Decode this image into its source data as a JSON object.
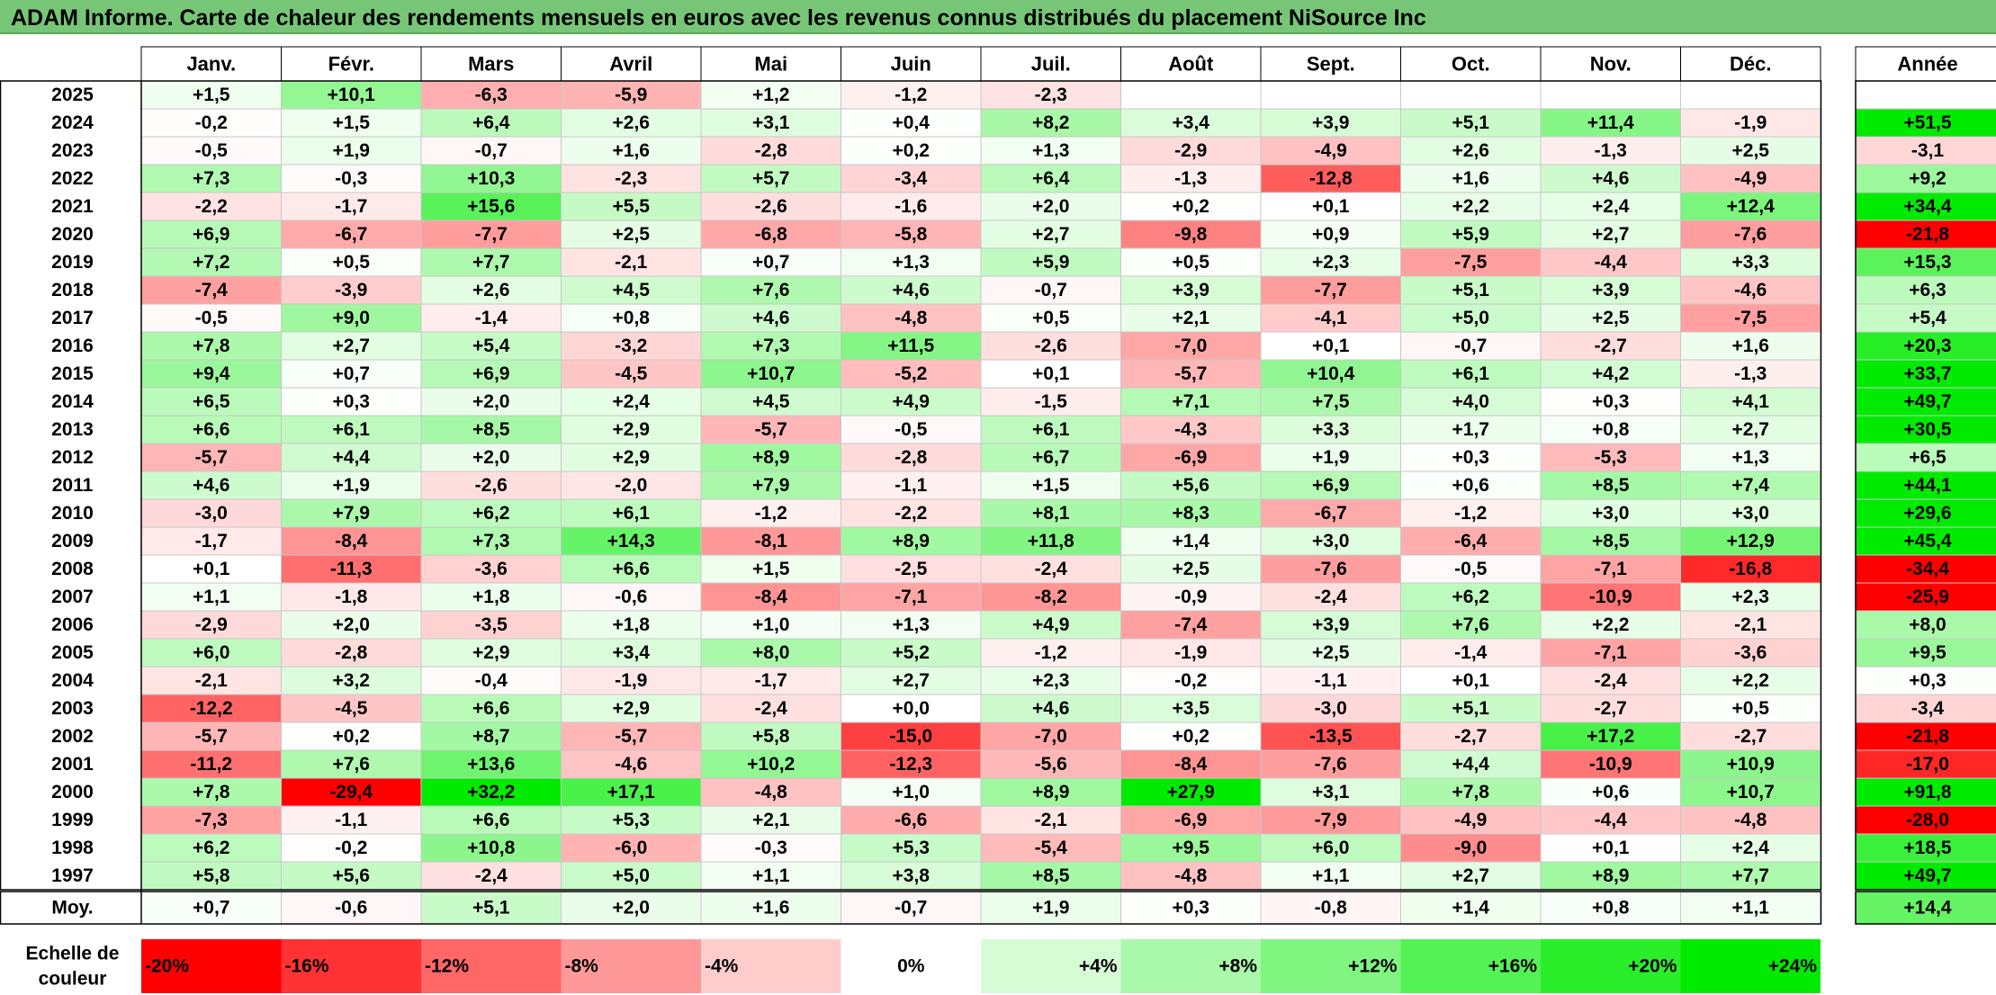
{
  "title": "ADAM Informe. Carte de chaleur des rendements mensuels en euros avec les revenus connus distribués du placement NiSource Inc",
  "colors": {
    "title_bg": "#77c677",
    "negative_max": "#ff0000",
    "positive_max": "#00e000",
    "neutral": "#ffffff"
  },
  "chart_data": {
    "type": "heatmap",
    "columns": [
      "Janv.",
      "Févr.",
      "Mars",
      "Avril",
      "Mai",
      "Juin",
      "Juil.",
      "Août",
      "Sept.",
      "Oct.",
      "Nov.",
      "Déc."
    ],
    "annual_header": "Année",
    "rows": [
      {
        "year": "2025",
        "values": [
          "+1,5",
          "+10,1",
          "-6,3",
          "-5,9",
          "+1,2",
          "-1,2",
          "-2,3",
          "",
          "",
          "",
          "",
          ""
        ],
        "annual": ""
      },
      {
        "year": "2024",
        "values": [
          "-0,2",
          "+1,5",
          "+6,4",
          "+2,6",
          "+3,1",
          "+0,4",
          "+8,2",
          "+3,4",
          "+3,9",
          "+5,1",
          "+11,4",
          "-1,9"
        ],
        "annual": "+51,5"
      },
      {
        "year": "2023",
        "values": [
          "-0,5",
          "+1,9",
          "-0,7",
          "+1,6",
          "-2,8",
          "+0,2",
          "+1,3",
          "-2,9",
          "-4,9",
          "+2,6",
          "-1,3",
          "+2,5"
        ],
        "annual": "-3,1"
      },
      {
        "year": "2022",
        "values": [
          "+7,3",
          "-0,3",
          "+10,3",
          "-2,3",
          "+5,7",
          "-3,4",
          "+6,4",
          "-1,3",
          "-12,8",
          "+1,6",
          "+4,6",
          "-4,9"
        ],
        "annual": "+9,2"
      },
      {
        "year": "2021",
        "values": [
          "-2,2",
          "-1,7",
          "+15,6",
          "+5,5",
          "-2,6",
          "-1,6",
          "+2,0",
          "+0,2",
          "+0,1",
          "+2,2",
          "+2,4",
          "+12,4"
        ],
        "annual": "+34,4"
      },
      {
        "year": "2020",
        "values": [
          "+6,9",
          "-6,7",
          "-7,7",
          "+2,5",
          "-6,8",
          "-5,8",
          "+2,7",
          "-9,8",
          "+0,9",
          "+5,9",
          "+2,7",
          "-7,6"
        ],
        "annual": "-21,8"
      },
      {
        "year": "2019",
        "values": [
          "+7,2",
          "+0,5",
          "+7,7",
          "-2,1",
          "+0,7",
          "+1,3",
          "+5,9",
          "+0,5",
          "+2,3",
          "-7,5",
          "-4,4",
          "+3,3"
        ],
        "annual": "+15,3"
      },
      {
        "year": "2018",
        "values": [
          "-7,4",
          "-3,9",
          "+2,6",
          "+4,5",
          "+7,6",
          "+4,6",
          "-0,7",
          "+3,9",
          "-7,7",
          "+5,1",
          "+3,9",
          "-4,6"
        ],
        "annual": "+6,3"
      },
      {
        "year": "2017",
        "values": [
          "-0,5",
          "+9,0",
          "-1,4",
          "+0,8",
          "+4,6",
          "-4,8",
          "+0,5",
          "+2,1",
          "-4,1",
          "+5,0",
          "+2,5",
          "-7,5"
        ],
        "annual": "+5,4"
      },
      {
        "year": "2016",
        "values": [
          "+7,8",
          "+2,7",
          "+5,4",
          "-3,2",
          "+7,3",
          "+11,5",
          "-2,6",
          "-7,0",
          "+0,1",
          "-0,7",
          "-2,7",
          "+1,6"
        ],
        "annual": "+20,3"
      },
      {
        "year": "2015",
        "values": [
          "+9,4",
          "+0,7",
          "+6,9",
          "-4,5",
          "+10,7",
          "-5,2",
          "+0,1",
          "-5,7",
          "+10,4",
          "+6,1",
          "+4,2",
          "-1,3"
        ],
        "annual": "+33,7"
      },
      {
        "year": "2014",
        "values": [
          "+6,5",
          "+0,3",
          "+2,0",
          "+2,4",
          "+4,5",
          "+4,9",
          "-1,5",
          "+7,1",
          "+7,5",
          "+4,0",
          "+0,3",
          "+4,1"
        ],
        "annual": "+49,7"
      },
      {
        "year": "2013",
        "values": [
          "+6,6",
          "+6,1",
          "+8,5",
          "+2,9",
          "-5,7",
          "-0,5",
          "+6,1",
          "-4,3",
          "+3,3",
          "+1,7",
          "+0,8",
          "+2,7"
        ],
        "annual": "+30,5"
      },
      {
        "year": "2012",
        "values": [
          "-5,7",
          "+4,4",
          "+2,0",
          "+2,9",
          "+8,9",
          "-2,8",
          "+6,7",
          "-6,9",
          "+1,9",
          "+0,3",
          "-5,3",
          "+1,3"
        ],
        "annual": "+6,5"
      },
      {
        "year": "2011",
        "values": [
          "+4,6",
          "+1,9",
          "-2,6",
          "-2,0",
          "+7,9",
          "-1,1",
          "+1,5",
          "+5,6",
          "+6,9",
          "+0,6",
          "+8,5",
          "+7,4"
        ],
        "annual": "+44,1"
      },
      {
        "year": "2010",
        "values": [
          "-3,0",
          "+7,9",
          "+6,2",
          "+6,1",
          "-1,2",
          "-2,2",
          "+8,1",
          "+8,3",
          "-6,7",
          "-1,2",
          "+3,0",
          "+3,0"
        ],
        "annual": "+29,6"
      },
      {
        "year": "2009",
        "values": [
          "-1,7",
          "-8,4",
          "+7,3",
          "+14,3",
          "-8,1",
          "+8,9",
          "+11,8",
          "+1,4",
          "+3,0",
          "-6,4",
          "+8,5",
          "+12,9"
        ],
        "annual": "+45,4"
      },
      {
        "year": "2008",
        "values": [
          "+0,1",
          "-11,3",
          "-3,6",
          "+6,6",
          "+1,5",
          "-2,5",
          "-2,4",
          "+2,5",
          "-7,6",
          "-0,5",
          "-7,1",
          "-16,8"
        ],
        "annual": "-34,4"
      },
      {
        "year": "2007",
        "values": [
          "+1,1",
          "-1,8",
          "+1,8",
          "-0,6",
          "-8,4",
          "-7,1",
          "-8,2",
          "-0,9",
          "-2,4",
          "+6,2",
          "-10,9",
          "+2,3"
        ],
        "annual": "-25,9"
      },
      {
        "year": "2006",
        "values": [
          "-2,9",
          "+2,0",
          "-3,5",
          "+1,8",
          "+1,0",
          "+1,3",
          "+4,9",
          "-7,4",
          "+3,9",
          "+7,6",
          "+2,2",
          "-2,1"
        ],
        "annual": "+8,0"
      },
      {
        "year": "2005",
        "values": [
          "+6,0",
          "-2,8",
          "+2,9",
          "+3,4",
          "+8,0",
          "+5,2",
          "-1,2",
          "-1,9",
          "+2,5",
          "-1,4",
          "-7,1",
          "-3,6"
        ],
        "annual": "+9,5"
      },
      {
        "year": "2004",
        "values": [
          "-2,1",
          "+3,2",
          "-0,4",
          "-1,9",
          "-1,7",
          "+2,7",
          "+2,3",
          "-0,2",
          "-1,1",
          "+0,1",
          "-2,4",
          "+2,2"
        ],
        "annual": "+0,3"
      },
      {
        "year": "2003",
        "values": [
          "-12,2",
          "-4,5",
          "+6,6",
          "+2,9",
          "-2,4",
          "+0,0",
          "+4,6",
          "+3,5",
          "-3,0",
          "+5,1",
          "-2,7",
          "+0,5"
        ],
        "annual": "-3,4"
      },
      {
        "year": "2002",
        "values": [
          "-5,7",
          "+0,2",
          "+8,7",
          "-5,7",
          "+5,8",
          "-15,0",
          "-7,0",
          "+0,2",
          "-13,5",
          "-2,7",
          "+17,2",
          "-2,7"
        ],
        "annual": "-21,8"
      },
      {
        "year": "2001",
        "values": [
          "-11,2",
          "+7,6",
          "+13,6",
          "-4,6",
          "+10,2",
          "-12,3",
          "-5,6",
          "-8,4",
          "-7,6",
          "+4,4",
          "-10,9",
          "+10,9"
        ],
        "annual": "-17,0"
      },
      {
        "year": "2000",
        "values": [
          "+7,8",
          "-29,4",
          "+32,2",
          "+17,1",
          "-4,8",
          "+1,0",
          "+8,9",
          "+27,9",
          "+3,1",
          "+7,8",
          "+0,6",
          "+10,7"
        ],
        "annual": "+91,8"
      },
      {
        "year": "1999",
        "values": [
          "-7,3",
          "-1,1",
          "+6,6",
          "+5,3",
          "+2,1",
          "-6,6",
          "-2,1",
          "-6,9",
          "-7,9",
          "-4,9",
          "-4,4",
          "-4,8"
        ],
        "annual": "-28,0"
      },
      {
        "year": "1998",
        "values": [
          "+6,2",
          "-0,2",
          "+10,8",
          "-6,0",
          "-0,3",
          "+5,3",
          "-5,4",
          "+9,5",
          "+6,0",
          "-9,0",
          "+0,1",
          "+2,4"
        ],
        "annual": "+18,5"
      },
      {
        "year": "1997",
        "values": [
          "+5,8",
          "+5,6",
          "-2,4",
          "+5,0",
          "+1,1",
          "+3,8",
          "+8,5",
          "-4,8",
          "+1,1",
          "+2,7",
          "+8,9",
          "+7,7"
        ],
        "annual": "+49,7"
      }
    ],
    "average": {
      "label": "Moy.",
      "values": [
        "+0,7",
        "-0,6",
        "+5,1",
        "+2,0",
        "+1,6",
        "-0,7",
        "+1,9",
        "+0,3",
        "-0,8",
        "+1,4",
        "+0,8",
        "+1,1"
      ],
      "annual": "+14,4"
    },
    "color_scale": {
      "label_line1": "Echelle de",
      "label_line2": "couleur",
      "ticks": [
        "-20%",
        "-16%",
        "-12%",
        "-8%",
        "-4%",
        "0%",
        "+4%",
        "+8%",
        "+12%",
        "+16%",
        "+20%",
        "+24%"
      ],
      "tick_values": [
        -20,
        -16,
        -12,
        -8,
        -4,
        0,
        4,
        8,
        12,
        16,
        20,
        24
      ]
    }
  }
}
